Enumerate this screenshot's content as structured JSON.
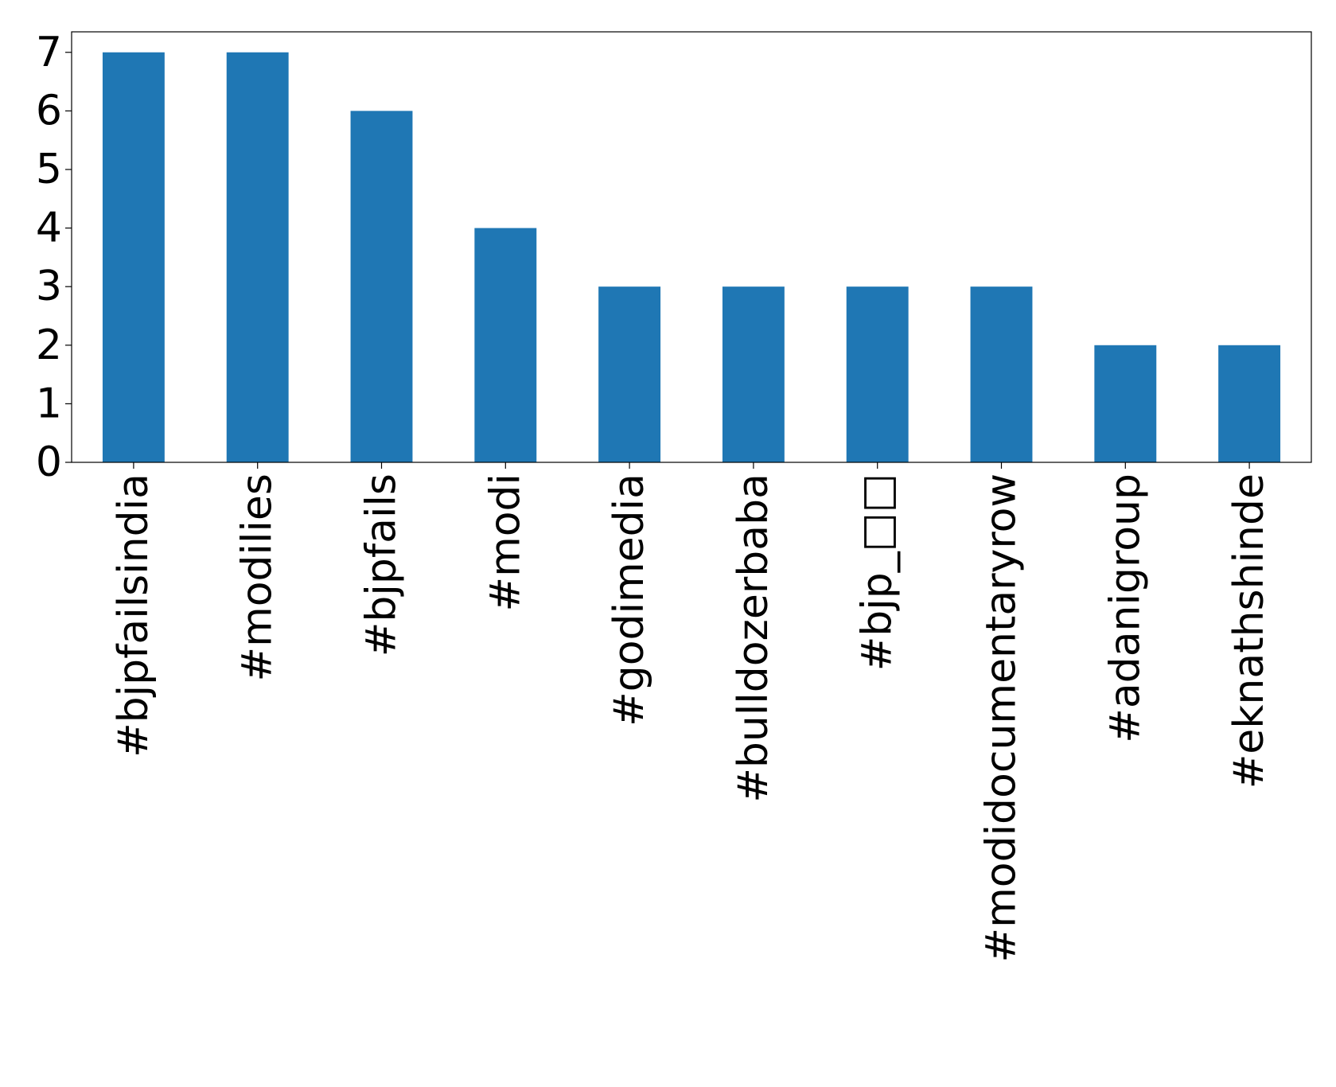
{
  "chart_data": {
    "type": "bar",
    "categories": [
      "#bjpfailsindia",
      "#modilies",
      "#bjpfails",
      "#modi",
      "#godimedia",
      "#bulldozerbaba",
      "#bjp_□□",
      "#modidocumentaryrow",
      "#adanigroup",
      "#eknathshinde"
    ],
    "values": [
      7,
      7,
      6,
      4,
      3,
      3,
      3,
      3,
      2,
      2
    ],
    "color": "#1f77b4",
    "ylim": [
      0,
      7.35
    ],
    "yticks": [
      0,
      1,
      2,
      3,
      4,
      5,
      6,
      7
    ],
    "grid": false
  }
}
